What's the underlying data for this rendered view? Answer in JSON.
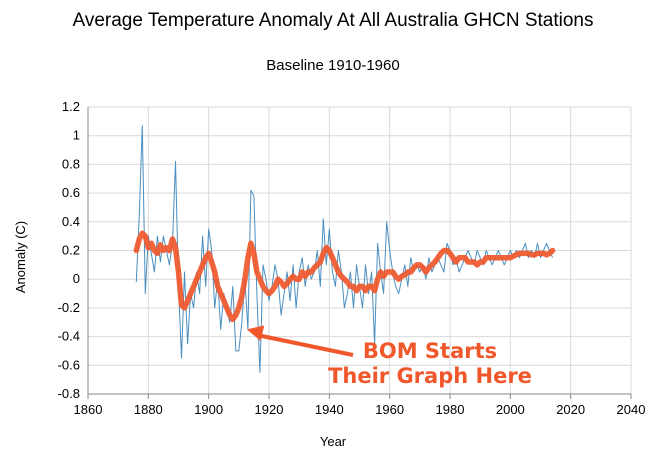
{
  "chart_data": {
    "type": "line",
    "title": "Average Temperature Anomaly At All Australia GHCN Stations",
    "subtitle": "Baseline 1910-1960",
    "xlabel": "Year",
    "ylabel": "Anomaly (C)",
    "xlim": [
      1860,
      2040
    ],
    "ylim": [
      -0.8,
      1.2
    ],
    "x_ticks": [
      1860,
      1880,
      1900,
      1920,
      1940,
      1960,
      1980,
      2000,
      2020,
      2040
    ],
    "y_ticks": [
      -0.8,
      -0.6,
      -0.4,
      -0.2,
      0,
      0.2,
      0.4,
      0.6,
      0.8,
      1,
      1.2
    ],
    "y_tick_labels": [
      "-0.8",
      "-0.6",
      "-0.4",
      "-0.2",
      "0",
      "0.2",
      "0.4",
      "0.6",
      "0.8",
      "1",
      "1.2"
    ],
    "grid": true,
    "colors": {
      "annual": "#4a8fc0",
      "smoothed": "#f0572b",
      "grid": "#d9d9d9",
      "axis": "#888888"
    },
    "series": [
      {
        "style": "thin",
        "x": [
          1876,
          1877,
          1878,
          1879,
          1880,
          1881,
          1882,
          1883,
          1884,
          1885,
          1886,
          1887,
          1888,
          1889,
          1890,
          1891,
          1892,
          1893,
          1894,
          1895,
          1896,
          1897,
          1898,
          1899,
          1900,
          1901,
          1902,
          1903,
          1904,
          1905,
          1906,
          1907,
          1908,
          1909,
          1910,
          1911,
          1912,
          1913,
          1914,
          1915,
          1916,
          1917,
          1918,
          1919,
          1920,
          1921,
          1922,
          1923,
          1924,
          1925,
          1926,
          1927,
          1928,
          1929,
          1930,
          1931,
          1932,
          1933,
          1934,
          1935,
          1936,
          1937,
          1938,
          1939,
          1940,
          1941,
          1942,
          1943,
          1944,
          1945,
          1946,
          1947,
          1948,
          1949,
          1950,
          1951,
          1952,
          1953,
          1954,
          1955,
          1956,
          1957,
          1958,
          1959,
          1960,
          1961,
          1962,
          1963,
          1964,
          1965,
          1966,
          1967,
          1968,
          1969,
          1970,
          1971,
          1972,
          1973,
          1974,
          1975,
          1976,
          1977,
          1978,
          1979,
          1980,
          1981,
          1982,
          1983,
          1984,
          1985,
          1986,
          1987,
          1988,
          1989,
          1990,
          1991,
          1992,
          1993,
          1994,
          1995,
          1996,
          1997,
          1998,
          1999,
          2000,
          2001,
          2002,
          2003,
          2004,
          2005,
          2006,
          2007,
          2008,
          2009,
          2010,
          2011,
          2012,
          2013,
          2014
        ],
        "y": [
          -0.02,
          0.45,
          1.07,
          -0.1,
          0.3,
          0.18,
          0.05,
          0.3,
          0.12,
          0.3,
          0.2,
          0.1,
          0.25,
          0.82,
          -0.05,
          -0.55,
          0.05,
          -0.45,
          -0.1,
          -0.2,
          0.05,
          -0.1,
          0.3,
          -0.05,
          0.35,
          0.2,
          -0.2,
          0.0,
          -0.35,
          -0.1,
          -0.2,
          -0.3,
          -0.05,
          -0.5,
          -0.5,
          -0.3,
          0.0,
          -0.35,
          0.62,
          0.58,
          -0.1,
          -0.65,
          0.1,
          0.0,
          -0.15,
          -0.05,
          0.1,
          0.0,
          -0.25,
          -0.1,
          0.05,
          -0.15,
          0.1,
          -0.2,
          0.05,
          0.15,
          -0.05,
          0.1,
          0.0,
          0.05,
          0.2,
          -0.05,
          0.42,
          0.1,
          0.35,
          0.05,
          -0.05,
          0.2,
          0.05,
          -0.2,
          -0.1,
          0.05,
          -0.2,
          0.1,
          -0.05,
          -0.2,
          0.1,
          -0.1,
          0.05,
          -0.45,
          0.25,
          0.05,
          -0.1,
          0.4,
          0.2,
          0.05,
          -0.05,
          -0.1,
          0.0,
          0.1,
          -0.05,
          0.15,
          0.05,
          0.1,
          0.05,
          0.1,
          0.0,
          0.15,
          0.05,
          0.1,
          0.15,
          0.1,
          0.05,
          0.25,
          0.2,
          0.1,
          0.15,
          0.05,
          0.1,
          0.15,
          0.2,
          0.15,
          0.1,
          0.2,
          0.15,
          0.1,
          0.2,
          0.15,
          0.1,
          0.15,
          0.2,
          0.15,
          0.1,
          0.15,
          0.2,
          0.15,
          0.2,
          0.15,
          0.2,
          0.25,
          0.15,
          0.2,
          0.15,
          0.25,
          0.15,
          0.2,
          0.25,
          0.2,
          0.15
        ]
      },
      {
        "style": "thick",
        "x": [
          1876,
          1877,
          1878,
          1879,
          1880,
          1881,
          1882,
          1883,
          1884,
          1885,
          1886,
          1887,
          1888,
          1889,
          1890,
          1891,
          1892,
          1893,
          1894,
          1895,
          1896,
          1897,
          1898,
          1899,
          1900,
          1901,
          1902,
          1903,
          1904,
          1905,
          1906,
          1907,
          1908,
          1909,
          1910,
          1911,
          1912,
          1913,
          1914,
          1915,
          1916,
          1917,
          1918,
          1919,
          1920,
          1921,
          1922,
          1923,
          1924,
          1925,
          1926,
          1927,
          1928,
          1929,
          1930,
          1931,
          1932,
          1933,
          1934,
          1935,
          1936,
          1937,
          1938,
          1939,
          1940,
          1941,
          1942,
          1943,
          1944,
          1945,
          1946,
          1947,
          1948,
          1949,
          1950,
          1951,
          1952,
          1953,
          1954,
          1955,
          1956,
          1957,
          1958,
          1959,
          1960,
          1961,
          1962,
          1963,
          1964,
          1965,
          1966,
          1967,
          1968,
          1969,
          1970,
          1971,
          1972,
          1973,
          1974,
          1975,
          1976,
          1977,
          1978,
          1979,
          1980,
          1981,
          1982,
          1983,
          1984,
          1985,
          1986,
          1987,
          1988,
          1989,
          1990,
          1991,
          1992,
          1993,
          1994,
          1995,
          1996,
          1997,
          1998,
          1999,
          2000,
          2001,
          2002,
          2003,
          2004,
          2005,
          2006,
          2007,
          2008,
          2009,
          2010,
          2011,
          2012,
          2013,
          2014
        ],
        "y": [
          0.2,
          0.28,
          0.32,
          0.3,
          0.22,
          0.25,
          0.2,
          0.18,
          0.24,
          0.2,
          0.22,
          0.2,
          0.28,
          0.22,
          0.05,
          -0.18,
          -0.2,
          -0.15,
          -0.1,
          -0.05,
          0.0,
          0.05,
          0.1,
          0.15,
          0.18,
          0.12,
          0.05,
          -0.05,
          -0.1,
          -0.15,
          -0.2,
          -0.25,
          -0.28,
          -0.25,
          -0.2,
          -0.12,
          0.0,
          0.15,
          0.25,
          0.18,
          0.05,
          0.0,
          -0.05,
          -0.08,
          -0.1,
          -0.08,
          -0.05,
          0.0,
          -0.02,
          -0.05,
          -0.03,
          0.0,
          0.02,
          0.0,
          0.0,
          0.05,
          0.02,
          0.05,
          0.05,
          0.08,
          0.1,
          0.12,
          0.18,
          0.22,
          0.2,
          0.15,
          0.1,
          0.05,
          0.02,
          0.0,
          -0.02,
          -0.05,
          -0.05,
          -0.08,
          -0.05,
          -0.05,
          -0.08,
          -0.05,
          -0.05,
          -0.08,
          0.0,
          0.05,
          0.02,
          0.05,
          0.05,
          0.05,
          0.02,
          0.0,
          0.02,
          0.03,
          0.05,
          0.05,
          0.08,
          0.1,
          0.1,
          0.08,
          0.05,
          0.08,
          0.1,
          0.12,
          0.15,
          0.18,
          0.2,
          0.2,
          0.18,
          0.15,
          0.12,
          0.15,
          0.15,
          0.15,
          0.12,
          0.12,
          0.12,
          0.1,
          0.12,
          0.12,
          0.15,
          0.15,
          0.15,
          0.15,
          0.15,
          0.15,
          0.15,
          0.15,
          0.15,
          0.16,
          0.17,
          0.18,
          0.18,
          0.18,
          0.18,
          0.17,
          0.17,
          0.18,
          0.18,
          0.18,
          0.17,
          0.18,
          0.2
        ]
      }
    ],
    "annotation": {
      "lines": [
        "BOM Starts",
        "Their Graph Here"
      ],
      "arrow_target": {
        "x": 1910,
        "y": -0.28
      }
    }
  }
}
